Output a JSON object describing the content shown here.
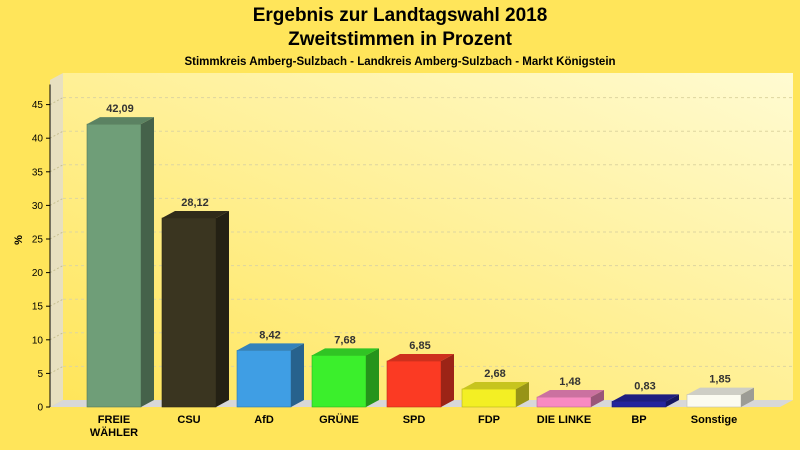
{
  "chart_data": {
    "type": "bar",
    "title": "Ergebnis zur Landtagswahl 2018",
    "subtitle": "Zweitstimmen in Prozent",
    "caption": "Stimmkreis Amberg-Sulzbach - Landkreis Amberg-Sulzbach - Markt Königstein",
    "ylabel": "%",
    "xlabel": "",
    "ylim": [
      0,
      48
    ],
    "yticks": [
      0,
      5,
      10,
      15,
      20,
      25,
      30,
      35,
      40,
      45
    ],
    "grid": true,
    "categories": [
      [
        "FREIE",
        "WÄHLER"
      ],
      [
        "CSU"
      ],
      [
        "AfD"
      ],
      [
        "GRÜNE"
      ],
      [
        "SPD"
      ],
      [
        "FDP"
      ],
      [
        "DIE LINKE"
      ],
      [
        "BP"
      ],
      [
        "Sonstige"
      ]
    ],
    "values": [
      42.09,
      28.12,
      8.42,
      7.68,
      6.85,
      2.68,
      1.48,
      0.83,
      1.85
    ],
    "value_labels": [
      "42,09",
      "28,12",
      "8,42",
      "7,68",
      "6,85",
      "2,68",
      "1,48",
      "0,83",
      "1,85"
    ],
    "colors": [
      "#6f9e78",
      "#3a3520",
      "#3f9ee4",
      "#3bef2c",
      "#fb3a23",
      "#f3ef24",
      "#f88ac3",
      "#24259c",
      "#fbfbf0"
    ]
  }
}
